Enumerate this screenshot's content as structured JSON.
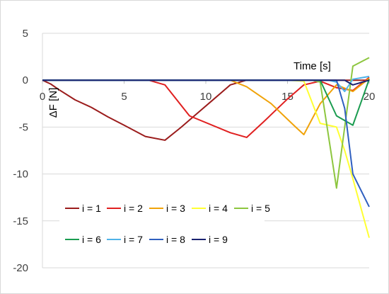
{
  "chart_data": {
    "type": "line",
    "title": "",
    "xlabel": "Time [s]",
    "ylabel": "ΔF [N]",
    "xlim": [
      0,
      20
    ],
    "ylim": [
      -20,
      5
    ],
    "x_ticks": [
      0,
      5,
      10,
      15,
      20
    ],
    "y_ticks": [
      5,
      0,
      -5,
      -10,
      -15,
      -20
    ],
    "grid": "horizontal",
    "legend_placement": "lower-left",
    "series": [
      {
        "name": "i = 1",
        "color": "#9b1c1c",
        "points": [
          [
            0,
            0
          ],
          [
            0.5,
            -0.4
          ],
          [
            1,
            -1
          ],
          [
            2,
            -2.1
          ],
          [
            3,
            -2.9
          ],
          [
            4,
            -3.9
          ],
          [
            5,
            -4.8
          ],
          [
            6.3,
            -6.0
          ],
          [
            7.5,
            -6.4
          ],
          [
            8.5,
            -5
          ],
          [
            9.5,
            -3.5
          ],
          [
            10.5,
            -2
          ],
          [
            11.5,
            -0.5
          ],
          [
            12.5,
            0
          ],
          [
            14,
            0
          ],
          [
            15,
            0
          ],
          [
            16,
            0
          ],
          [
            17,
            0
          ],
          [
            18,
            0
          ],
          [
            19,
            0
          ],
          [
            20,
            0
          ]
        ]
      },
      {
        "name": "i = 2",
        "color": "#e02020",
        "points": [
          [
            0,
            0
          ],
          [
            6.5,
            0
          ],
          [
            7.5,
            -0.5
          ],
          [
            9,
            -3.8
          ],
          [
            11.5,
            -5.6
          ],
          [
            12.5,
            -6.1
          ],
          [
            13.5,
            -4.5
          ],
          [
            15,
            -2
          ],
          [
            16,
            -0.5
          ],
          [
            17,
            -0.1
          ],
          [
            18,
            -0.8
          ],
          [
            19,
            -1.1
          ],
          [
            20,
            0.3
          ]
        ]
      },
      {
        "name": "i = 3",
        "color": "#f0a30a",
        "points": [
          [
            0,
            0
          ],
          [
            11.5,
            0
          ],
          [
            12.5,
            -0.7
          ],
          [
            14,
            -2.5
          ],
          [
            15.5,
            -5
          ],
          [
            16,
            -5.8
          ],
          [
            17,
            -2.5
          ],
          [
            18,
            -0.5
          ],
          [
            19,
            -1.2
          ],
          [
            20,
            0.2
          ]
        ]
      },
      {
        "name": "i = 4",
        "color": "#ffff33",
        "points": [
          [
            0,
            0
          ],
          [
            15,
            0
          ],
          [
            16,
            -0.1
          ],
          [
            17,
            -4.6
          ],
          [
            18,
            -5.0
          ],
          [
            18.5,
            -7.5
          ],
          [
            19,
            -10.5
          ],
          [
            20,
            -16.8
          ]
        ]
      },
      {
        "name": "i = 5",
        "color": "#8dc63f",
        "points": [
          [
            0,
            0
          ],
          [
            16.5,
            0
          ],
          [
            17,
            -0.2
          ],
          [
            18,
            -11.5
          ],
          [
            19,
            1.5
          ],
          [
            20,
            2.4
          ]
        ]
      },
      {
        "name": "i = 6",
        "color": "#1a9c50",
        "points": [
          [
            0,
            0
          ],
          [
            17,
            0
          ],
          [
            18,
            -3.8
          ],
          [
            19,
            -4.8
          ],
          [
            20,
            0.1
          ]
        ]
      },
      {
        "name": "i = 7",
        "color": "#4fb3e8",
        "points": [
          [
            0,
            0
          ],
          [
            17.5,
            0
          ],
          [
            18,
            -0.2
          ],
          [
            18.5,
            -1.2
          ],
          [
            19,
            0.1
          ],
          [
            20,
            0.4
          ]
        ]
      },
      {
        "name": "i = 8",
        "color": "#2f5fbf",
        "points": [
          [
            0,
            0
          ],
          [
            18,
            0
          ],
          [
            18.5,
            -3
          ],
          [
            19,
            -10
          ],
          [
            20,
            -13.5
          ]
        ]
      },
      {
        "name": "i = 9",
        "color": "#1a2270",
        "points": [
          [
            0,
            0
          ],
          [
            18,
            0
          ],
          [
            18.5,
            0
          ],
          [
            19,
            -0.5
          ],
          [
            20,
            0
          ]
        ]
      }
    ]
  }
}
